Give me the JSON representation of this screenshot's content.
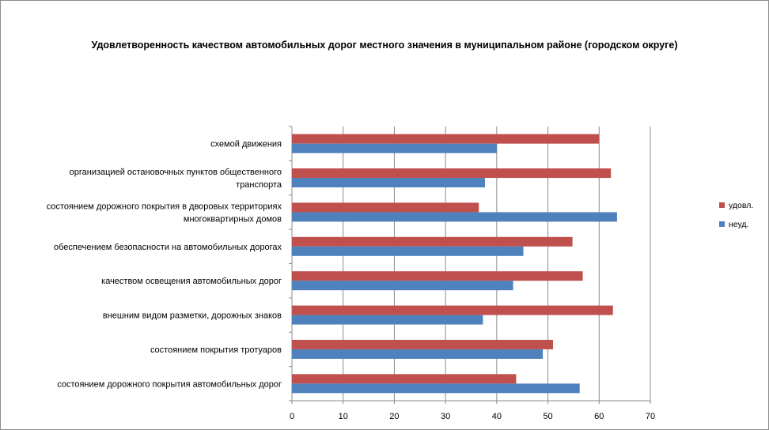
{
  "chart_data": {
    "type": "bar",
    "orientation": "horizontal",
    "title": "Удовлетворенность качеством автомобильных дорог местного значения в муниципальном районе (городском округе)",
    "categories": [
      [
        "схемой движения"
      ],
      [
        "организацией остановочных пунктов общественного",
        "транспорта"
      ],
      [
        "состоянием дорожного покрытия в дворовых территориях",
        "многоквартирных домов"
      ],
      [
        "обеспечением  безопасности на автомобильных дорогах"
      ],
      [
        "качеством освещения  автомобильных дорог"
      ],
      [
        "внешним  видом разметки, дорожных знаков"
      ],
      [
        "состоянием покрытия тротуаров"
      ],
      [
        "состоянием дорожного покрытия автомобильных дорог"
      ]
    ],
    "series": [
      {
        "name": "удовл.",
        "color": "#c0504d",
        "values": [
          60,
          62.3,
          36.5,
          54.8,
          56.8,
          62.7,
          51,
          43.8
        ]
      },
      {
        "name": "неуд.",
        "color": "#4f81bd",
        "values": [
          40,
          37.7,
          63.5,
          45.2,
          43.2,
          37.3,
          49,
          56.2
        ]
      }
    ],
    "xlim": [
      0,
      70
    ],
    "xticks": [
      "0",
      "10",
      "20",
      "30",
      "40",
      "50",
      "60",
      "70"
    ],
    "grid": true,
    "legend": "right"
  }
}
